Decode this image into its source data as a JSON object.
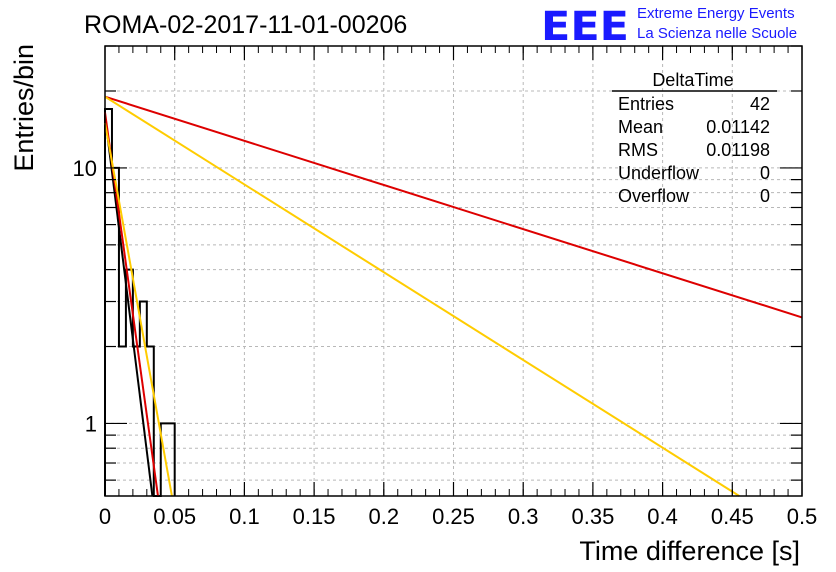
{
  "run_title": "ROMA-02-2017-11-01-00206",
  "logo": {
    "mark": "EEE",
    "line1": "Extreme Energy Events",
    "line2": "La Scienza nelle Scuole",
    "color": "#1a1aff"
  },
  "stats_box": {
    "title": "DeltaTime",
    "rows": [
      {
        "label": "Entries",
        "value": "42"
      },
      {
        "label": "Mean",
        "value": "0.01142"
      },
      {
        "label": "RMS",
        "value": "0.01198"
      },
      {
        "label": "Underflow",
        "value": "0"
      },
      {
        "label": "Overflow",
        "value": "0"
      }
    ]
  },
  "chart_data": {
    "type": "line",
    "title": "",
    "xlabel": "Time difference [s]",
    "ylabel": "Entries/bin",
    "xlim": [
      0,
      0.5
    ],
    "ylim": [
      0.52,
      30
    ],
    "y_scale": "log",
    "grid": true,
    "x_ticks": [
      0,
      0.05,
      0.1,
      0.15,
      0.2,
      0.25,
      0.3,
      0.35,
      0.4,
      0.45,
      0.5
    ],
    "x_tick_labels": [
      "0",
      "0.05",
      "0.1",
      "0.15",
      "0.2",
      "0.25",
      "0.3",
      "0.35",
      "0.4",
      "0.45",
      "0.5"
    ],
    "y_ticks": [
      1,
      10
    ],
    "y_tick_labels": [
      "1",
      "10"
    ],
    "histogram": {
      "color": "#000000",
      "bin_edges": [
        0,
        0.005,
        0.01,
        0.015,
        0.02,
        0.025,
        0.03,
        0.035,
        0.04,
        0.045,
        0.05
      ],
      "counts": [
        17,
        10,
        2,
        4,
        2,
        3,
        2,
        0,
        1,
        1
      ]
    },
    "fit_lines": [
      {
        "color": "#000000",
        "x": [
          0.0,
          0.034
        ],
        "y": [
          16,
          0.52
        ]
      },
      {
        "color": "#dd0000",
        "x": [
          0.0,
          0.038
        ],
        "y": [
          16.5,
          0.52
        ]
      },
      {
        "color": "#ffcc00",
        "x": [
          0.0,
          0.048
        ],
        "y": [
          15,
          0.52
        ]
      },
      {
        "color": "#dd0000",
        "x": [
          0.0,
          0.5
        ],
        "y": [
          19,
          2.6
        ]
      },
      {
        "color": "#ffcc00",
        "x": [
          0.0,
          0.455
        ],
        "y": [
          19,
          0.52
        ]
      }
    ]
  }
}
